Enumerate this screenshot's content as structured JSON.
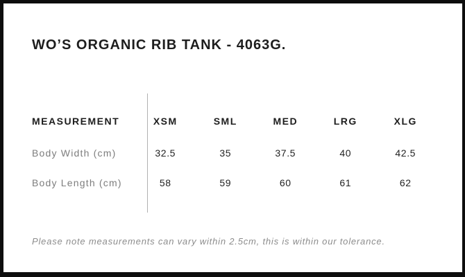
{
  "page": {
    "title": "WO’S ORGANIC RIB TANK - 4063G.",
    "note": "Please note measurements can vary within 2.5cm, this is within our tolerance."
  },
  "size_chart": {
    "measurement_header": "MEASUREMENT",
    "size_headers": [
      "XSM",
      "SML",
      "MED",
      "LRG",
      "XLG"
    ],
    "rows": [
      {
        "label": "Body Width (cm)",
        "values": [
          "32.5",
          "35",
          "37.5",
          "40",
          "42.5"
        ]
      },
      {
        "label": "Body Length (cm)",
        "values": [
          "58",
          "59",
          "60",
          "61",
          "62"
        ]
      }
    ]
  },
  "colors": {
    "frame_border": "#0d0d0d",
    "title_text": "#1d1d1d",
    "header_text": "#1d1d1d",
    "value_text": "#222222",
    "label_text": "#7d7d7d",
    "note_text": "#8c8c8c",
    "divider": "#b0b0b0",
    "background": "#ffffff"
  }
}
